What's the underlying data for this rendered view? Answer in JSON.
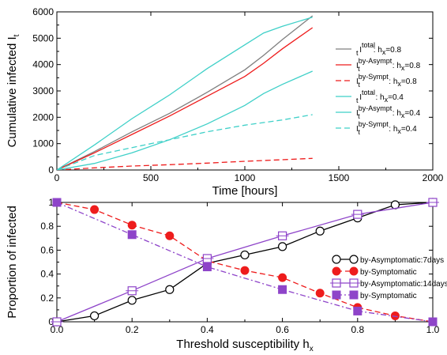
{
  "chart_data": [
    {
      "type": "line",
      "xlabel": "Time [hours]",
      "ylabel": {
        "main": "Cumulative infected I",
        "sub": "t"
      },
      "xlim": [
        0,
        2000
      ],
      "ylim": [
        0,
        6000
      ],
      "xticks": [
        0,
        500,
        1000,
        1500,
        2000
      ],
      "yticks": [
        0,
        1000,
        2000,
        3000,
        4000,
        5000,
        6000
      ],
      "xtick_labels": [
        "0",
        "500",
        "1000",
        "1500",
        "2000"
      ],
      "ytick_labels": [
        "0",
        "1000",
        "2000",
        "3000",
        "4000",
        "5000",
        "6000"
      ],
      "legend_position": "right",
      "grid": false,
      "series": [
        {
          "label": {
            "main": "I",
            "sub": "t",
            "sup": "total",
            "tail": ": h",
            "tailsub": "x",
            "end": "=0.8"
          },
          "color": "#7f7f7f",
          "style": "solid",
          "x": [
            0,
            200,
            400,
            600,
            800,
            1000,
            1100,
            1200,
            1360
          ],
          "y": [
            0,
            700,
            1450,
            2150,
            2950,
            3800,
            4350,
            4950,
            5850
          ]
        },
        {
          "label": {
            "main": "I",
            "sub": "t",
            "sup": "by-Asympt",
            "tail": " : h",
            "tailsub": "x",
            "end": "=0.8"
          },
          "color": "#ee1c1c",
          "style": "solid",
          "x": [
            0,
            200,
            400,
            600,
            800,
            1000,
            1100,
            1200,
            1360
          ],
          "y": [
            0,
            650,
            1350,
            2050,
            2800,
            3550,
            4050,
            4600,
            5400
          ]
        },
        {
          "label": {
            "main": "I",
            "sub": "t",
            "sup": "by-Sympt",
            "tail": " : h",
            "tailsub": "x",
            "end": "=0.8"
          },
          "color": "#ee1c1c",
          "style": "dashed",
          "x": [
            0,
            200,
            400,
            600,
            800,
            1000,
            1200,
            1360
          ],
          "y": [
            0,
            80,
            150,
            200,
            260,
            330,
            390,
            440
          ]
        },
        {
          "label": {
            "main": "I",
            "sub": "t",
            "sup": "total",
            "tail": " : h",
            "tailsub": "x",
            "end": "=0.4"
          },
          "color": "#3fd0c8",
          "style": "solid",
          "x": [
            0,
            200,
            400,
            600,
            800,
            1000,
            1100,
            1200,
            1360
          ],
          "y": [
            0,
            950,
            1950,
            2850,
            3850,
            4750,
            5200,
            5450,
            5800
          ]
        },
        {
          "label": {
            "main": "I",
            "sub": "t",
            "sup": "by-Asympt",
            "tail": " : h",
            "tailsub": "x",
            "end": "=0.4"
          },
          "color": "#3fd0c8",
          "style": "solid",
          "x": [
            0,
            200,
            400,
            600,
            800,
            1000,
            1100,
            1200,
            1360
          ],
          "y": [
            0,
            250,
            650,
            1150,
            1750,
            2450,
            2900,
            3250,
            3750
          ]
        },
        {
          "label": {
            "main": "I",
            "sub": "t",
            "sup": "by-Sympt",
            "tail": " : h",
            "tailsub": "x",
            "end": "=0.4"
          },
          "color": "#3fd0c8",
          "style": "dashed",
          "x": [
            0,
            200,
            400,
            600,
            800,
            1000,
            1100,
            1200,
            1360
          ],
          "y": [
            0,
            550,
            850,
            1150,
            1450,
            1700,
            1800,
            1900,
            2100
          ]
        }
      ]
    },
    {
      "type": "line",
      "xlabel": {
        "main": "Threshold susceptibility h",
        "sub": "x"
      },
      "ylabel": "Proportion of infected",
      "xlim": [
        0,
        1
      ],
      "ylim": [
        0,
        1
      ],
      "xticks": [
        0,
        0.2,
        0.4,
        0.6,
        0.8,
        1.0
      ],
      "yticks": [
        0,
        0.2,
        0.4,
        0.6,
        0.8,
        1
      ],
      "xtick_labels": [
        "0.0",
        "0.2",
        "0.4",
        "0.6",
        "0.8",
        "1.0"
      ],
      "ytick_labels": [
        "0",
        "0.2",
        "0.4",
        "0.6",
        "0.8",
        "1"
      ],
      "legend_position": "right",
      "grid": false,
      "series": [
        {
          "label": "by-Asymptomatic:7days",
          "color": "#000000",
          "style": "solid",
          "marker": "open-circle",
          "x": [
            0,
            0.1,
            0.2,
            0.3,
            0.4,
            0.5,
            0.6,
            0.7,
            0.8,
            0.9,
            1.0
          ],
          "y": [
            0,
            0.05,
            0.18,
            0.27,
            0.49,
            0.56,
            0.63,
            0.76,
            0.87,
            0.98,
            1.0
          ]
        },
        {
          "label": "by-Symptomatic",
          "color": "#ee1c1c",
          "style": "dashed",
          "marker": "filled-circle",
          "x": [
            0,
            0.1,
            0.2,
            0.3,
            0.4,
            0.5,
            0.6,
            0.7,
            0.8,
            0.9,
            1.0
          ],
          "y": [
            1.0,
            0.94,
            0.81,
            0.72,
            0.51,
            0.43,
            0.37,
            0.24,
            0.12,
            0.05,
            0
          ]
        },
        {
          "label": "by-Asymptomatic:14days",
          "color": "#8e44c9",
          "style": "solid",
          "marker": "open-square",
          "x": [
            0,
            0.2,
            0.4,
            0.6,
            0.8,
            1.0
          ],
          "y": [
            0,
            0.26,
            0.53,
            0.72,
            0.9,
            1.0
          ]
        },
        {
          "label": "by-Symptomatic",
          "color": "#8e44c9",
          "style": "dashdot",
          "marker": "filled-square",
          "x": [
            0,
            0.2,
            0.4,
            0.6,
            0.8,
            1.0
          ],
          "y": [
            1.0,
            0.73,
            0.46,
            0.27,
            0.09,
            0
          ]
        }
      ]
    }
  ]
}
